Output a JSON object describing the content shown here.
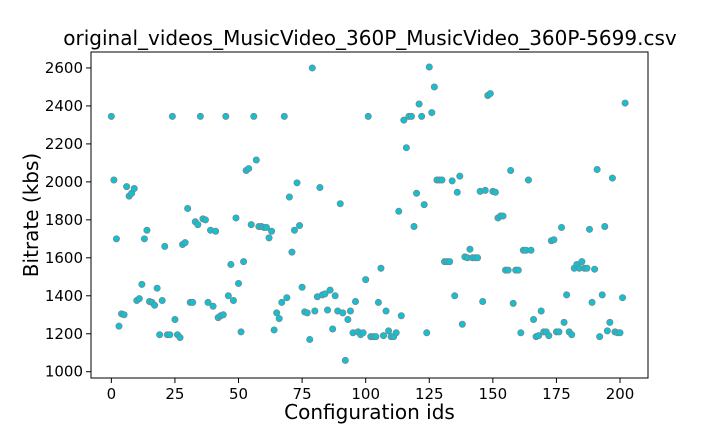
{
  "chart_data": {
    "type": "scatter",
    "title": "original_videos_MusicVideo_360P_MusicVideo_360P-5699.csv",
    "xlabel": "Configuration ids",
    "ylabel": "Bitrate (kbs)",
    "xlim": [
      -8,
      211
    ],
    "ylim": [
      967,
      2684
    ],
    "xticks": [
      0,
      25,
      50,
      75,
      100,
      125,
      150,
      175,
      200
    ],
    "yticks": [
      1000,
      1200,
      1400,
      1600,
      1800,
      2000,
      2200,
      2400,
      2600
    ],
    "grid": false,
    "marker_color": "#17becf",
    "marker_edge_color": "#7f7f7f",
    "points": [
      [
        0,
        2345
      ],
      [
        1,
        2010
      ],
      [
        2,
        1700
      ],
      [
        3,
        1240
      ],
      [
        4,
        1305
      ],
      [
        5,
        1300
      ],
      [
        6,
        1975
      ],
      [
        7,
        1925
      ],
      [
        8,
        1940
      ],
      [
        9,
        1965
      ],
      [
        10,
        1375
      ],
      [
        11,
        1385
      ],
      [
        12,
        1460
      ],
      [
        13,
        1700
      ],
      [
        14,
        1745
      ],
      [
        15,
        1370
      ],
      [
        16,
        1365
      ],
      [
        17,
        1350
      ],
      [
        18,
        1440
      ],
      [
        19,
        1195
      ],
      [
        20,
        1375
      ],
      [
        21,
        1660
      ],
      [
        22,
        1195
      ],
      [
        23,
        1195
      ],
      [
        24,
        2345
      ],
      [
        25,
        1275
      ],
      [
        26,
        1195
      ],
      [
        27,
        1180
      ],
      [
        28,
        1670
      ],
      [
        29,
        1680
      ],
      [
        30,
        1860
      ],
      [
        31,
        1365
      ],
      [
        32,
        1365
      ],
      [
        33,
        1790
      ],
      [
        34,
        1775
      ],
      [
        35,
        2345
      ],
      [
        36,
        1805
      ],
      [
        37,
        1800
      ],
      [
        38,
        1365
      ],
      [
        39,
        1745
      ],
      [
        40,
        1345
      ],
      [
        41,
        1740
      ],
      [
        42,
        1285
      ],
      [
        43,
        1295
      ],
      [
        44,
        1300
      ],
      [
        45,
        2345
      ],
      [
        46,
        1400
      ],
      [
        47,
        1565
      ],
      [
        48,
        1375
      ],
      [
        49,
        1810
      ],
      [
        50,
        1465
      ],
      [
        51,
        1210
      ],
      [
        52,
        1580
      ],
      [
        53,
        2060
      ],
      [
        54,
        2070
      ],
      [
        55,
        1775
      ],
      [
        56,
        2345
      ],
      [
        57,
        2115
      ],
      [
        58,
        1765
      ],
      [
        59,
        1765
      ],
      [
        60,
        1760
      ],
      [
        61,
        1760
      ],
      [
        62,
        1705
      ],
      [
        63,
        1740
      ],
      [
        64,
        1220
      ],
      [
        65,
        1310
      ],
      [
        66,
        1280
      ],
      [
        67,
        1365
      ],
      [
        68,
        2345
      ],
      [
        69,
        1390
      ],
      [
        70,
        1920
      ],
      [
        71,
        1630
      ],
      [
        72,
        1745
      ],
      [
        73,
        1995
      ],
      [
        74,
        1770
      ],
      [
        75,
        1445
      ],
      [
        76,
        1315
      ],
      [
        77,
        1310
      ],
      [
        78,
        1170
      ],
      [
        79,
        2600
      ],
      [
        80,
        1320
      ],
      [
        81,
        1395
      ],
      [
        82,
        1970
      ],
      [
        83,
        1405
      ],
      [
        84,
        1410
      ],
      [
        85,
        1325
      ],
      [
        86,
        1430
      ],
      [
        87,
        1225
      ],
      [
        88,
        1400
      ],
      [
        89,
        1320
      ],
      [
        90,
        1885
      ],
      [
        91,
        1310
      ],
      [
        92,
        1060
      ],
      [
        93,
        1275
      ],
      [
        94,
        1320
      ],
      [
        95,
        1205
      ],
      [
        96,
        1370
      ],
      [
        97,
        1210
      ],
      [
        98,
        1195
      ],
      [
        99,
        1205
      ],
      [
        100,
        1485
      ],
      [
        101,
        2345
      ],
      [
        102,
        1185
      ],
      [
        103,
        1185
      ],
      [
        104,
        1185
      ],
      [
        105,
        1365
      ],
      [
        106,
        1545
      ],
      [
        107,
        1190
      ],
      [
        108,
        1320
      ],
      [
        109,
        1215
      ],
      [
        110,
        1185
      ],
      [
        111,
        1185
      ],
      [
        112,
        1205
      ],
      [
        113,
        1845
      ],
      [
        114,
        1295
      ],
      [
        115,
        2325
      ],
      [
        116,
        2180
      ],
      [
        117,
        2345
      ],
      [
        118,
        2345
      ],
      [
        119,
        1765
      ],
      [
        120,
        1940
      ],
      [
        121,
        2410
      ],
      [
        122,
        2345
      ],
      [
        123,
        1880
      ],
      [
        124,
        1205
      ],
      [
        125,
        2605
      ],
      [
        126,
        2365
      ],
      [
        127,
        2500
      ],
      [
        128,
        2010
      ],
      [
        129,
        2010
      ],
      [
        130,
        2010
      ],
      [
        131,
        1580
      ],
      [
        132,
        1580
      ],
      [
        133,
        1580
      ],
      [
        134,
        2005
      ],
      [
        135,
        1400
      ],
      [
        136,
        1945
      ],
      [
        137,
        2030
      ],
      [
        138,
        1250
      ],
      [
        139,
        1605
      ],
      [
        140,
        1600
      ],
      [
        141,
        1645
      ],
      [
        142,
        1600
      ],
      [
        143,
        1600
      ],
      [
        144,
        1600
      ],
      [
        145,
        1950
      ],
      [
        146,
        1370
      ],
      [
        147,
        1955
      ],
      [
        148,
        2455
      ],
      [
        149,
        2465
      ],
      [
        150,
        1950
      ],
      [
        151,
        1945
      ],
      [
        152,
        1810
      ],
      [
        153,
        1820
      ],
      [
        154,
        1820
      ],
      [
        155,
        1535
      ],
      [
        156,
        1535
      ],
      [
        157,
        2060
      ],
      [
        158,
        1360
      ],
      [
        159,
        1535
      ],
      [
        160,
        1535
      ],
      [
        161,
        1205
      ],
      [
        162,
        1640
      ],
      [
        163,
        1640
      ],
      [
        164,
        2010
      ],
      [
        165,
        1640
      ],
      [
        166,
        1275
      ],
      [
        167,
        1185
      ],
      [
        168,
        1190
      ],
      [
        169,
        1320
      ],
      [
        170,
        1210
      ],
      [
        171,
        1210
      ],
      [
        172,
        1190
      ],
      [
        173,
        1690
      ],
      [
        174,
        1695
      ],
      [
        175,
        1210
      ],
      [
        176,
        1210
      ],
      [
        177,
        1760
      ],
      [
        178,
        1260
      ],
      [
        179,
        1405
      ],
      [
        180,
        1210
      ],
      [
        181,
        1195
      ],
      [
        182,
        1545
      ],
      [
        183,
        1565
      ],
      [
        184,
        1545
      ],
      [
        185,
        1580
      ],
      [
        186,
        1545
      ],
      [
        187,
        1545
      ],
      [
        188,
        1750
      ],
      [
        189,
        1365
      ],
      [
        190,
        1540
      ],
      [
        191,
        2065
      ],
      [
        192,
        1185
      ],
      [
        193,
        1405
      ],
      [
        194,
        1765
      ],
      [
        195,
        1215
      ],
      [
        196,
        1260
      ],
      [
        197,
        2020
      ],
      [
        198,
        1210
      ],
      [
        199,
        1205
      ],
      [
        200,
        1205
      ],
      [
        201,
        1390
      ],
      [
        202,
        2415
      ]
    ]
  }
}
